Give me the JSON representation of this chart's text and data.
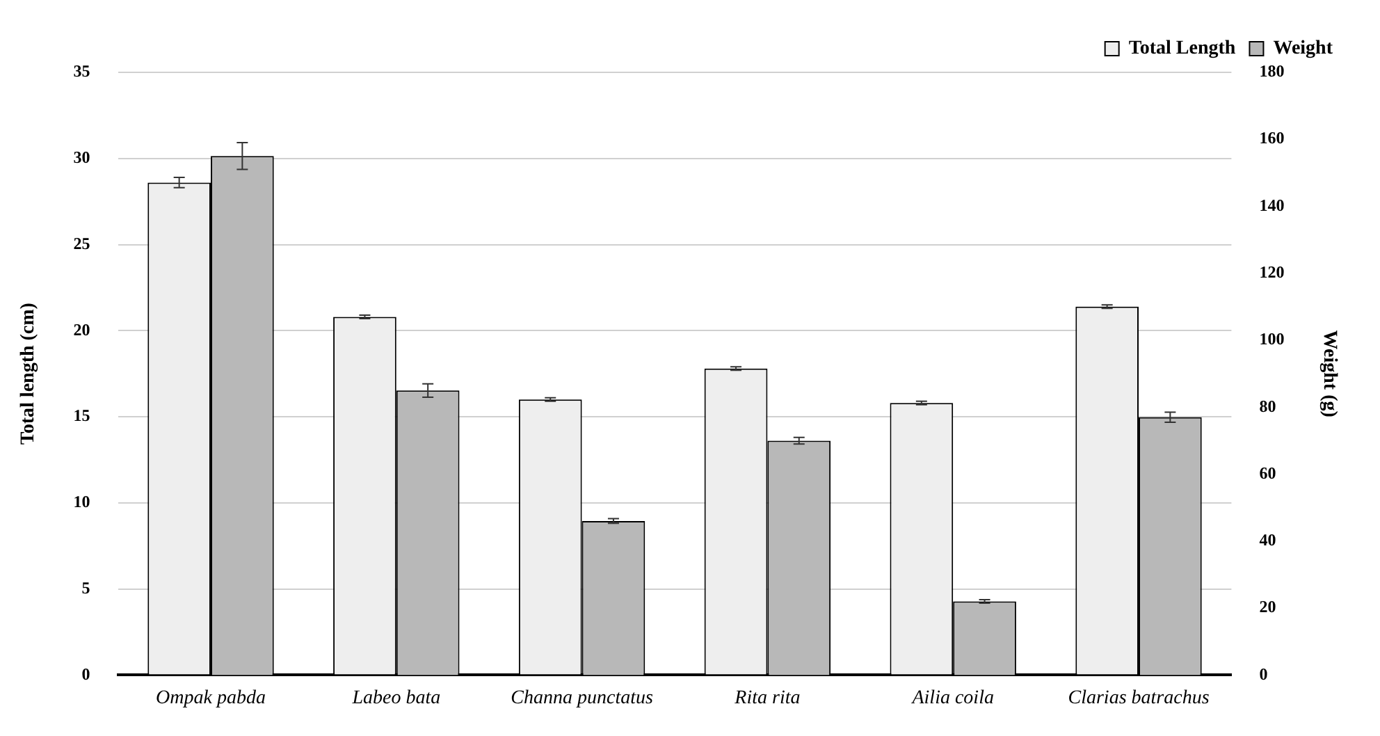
{
  "chart_data": {
    "type": "bar",
    "categories": [
      "Ompak pabda",
      "Labeo bata",
      "Channa punctatus",
      "Rita rita",
      "Ailia coila",
      "Clarias batrachus"
    ],
    "series": [
      {
        "name": "Total Length",
        "color": "#eeeeee",
        "values": [
          28.6,
          20.8,
          16.0,
          17.8,
          15.8,
          21.4
        ],
        "errors": [
          0.3,
          0.1,
          0.1,
          0.1,
          0.1,
          0.1
        ]
      },
      {
        "name": "Weight",
        "color": "#b8b8b8",
        "axis": "y2",
        "values": [
          155,
          85,
          46,
          70,
          22,
          77
        ],
        "errors": [
          4,
          2,
          0.7,
          1,
          0.5,
          1.5
        ]
      }
    ],
    "ylabel": "Total length (cm)",
    "y2label": "Weight (g)",
    "ylim": [
      0,
      35
    ],
    "yticks": [
      0,
      5,
      10,
      15,
      20,
      25,
      30,
      35
    ],
    "y2lim": [
      0,
      180
    ],
    "y2ticks": [
      0,
      20,
      40,
      60,
      80,
      100,
      120,
      140,
      160,
      180
    ],
    "grid": "y",
    "legend": "top right"
  }
}
